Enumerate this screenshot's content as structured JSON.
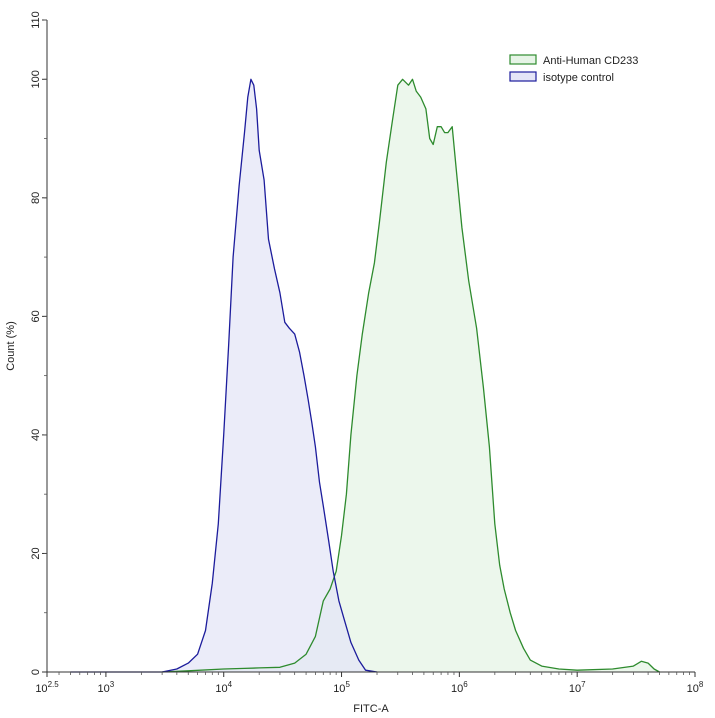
{
  "chart_data": {
    "type": "area",
    "xlabel": "FITC-A",
    "ylabel": "Count  (%)",
    "x_scale": "log",
    "xlim": [
      316.23,
      100000000
    ],
    "ylim": [
      0,
      110
    ],
    "grid": false,
    "legend_position": "top-right",
    "x_ticks": [
      {
        "value": 316.23,
        "base": "10",
        "exp": "2.5"
      },
      {
        "value": 1000,
        "base": "10",
        "exp": "3"
      },
      {
        "value": 10000,
        "base": "10",
        "exp": "4"
      },
      {
        "value": 100000,
        "base": "10",
        "exp": "5"
      },
      {
        "value": 1000000,
        "base": "10",
        "exp": "6"
      },
      {
        "value": 10000000,
        "base": "10",
        "exp": "7"
      },
      {
        "value": 100000000,
        "base": "10",
        "exp": "8"
      }
    ],
    "y_ticks": [
      "0",
      "20",
      "40",
      "60",
      "80",
      "100",
      "110"
    ],
    "series": [
      {
        "name": "Anti-Human CD233",
        "stroke": "#2e8b2e",
        "fill": "#e6f4e6",
        "points": [
          [
            3000,
            0
          ],
          [
            5000,
            0.2
          ],
          [
            10000,
            0.5
          ],
          [
            15000,
            0.6
          ],
          [
            20000,
            0.7
          ],
          [
            30000,
            0.8
          ],
          [
            40000,
            1.5
          ],
          [
            50000,
            3
          ],
          [
            60000,
            6
          ],
          [
            70000,
            12
          ],
          [
            80000,
            14
          ],
          [
            90000,
            17
          ],
          [
            100000,
            23
          ],
          [
            110000,
            30
          ],
          [
            120000,
            40
          ],
          [
            135000,
            50
          ],
          [
            150000,
            57
          ],
          [
            170000,
            64
          ],
          [
            190000,
            69
          ],
          [
            210000,
            76
          ],
          [
            240000,
            86
          ],
          [
            270000,
            93
          ],
          [
            300000,
            99
          ],
          [
            330000,
            100
          ],
          [
            370000,
            99
          ],
          [
            400000,
            100
          ],
          [
            430000,
            98
          ],
          [
            470000,
            97
          ],
          [
            520000,
            95
          ],
          [
            560000,
            90
          ],
          [
            600000,
            89
          ],
          [
            650000,
            92
          ],
          [
            700000,
            92
          ],
          [
            750000,
            91
          ],
          [
            800000,
            91
          ],
          [
            870000,
            92
          ],
          [
            950000,
            84
          ],
          [
            1050000,
            75
          ],
          [
            1200000,
            66
          ],
          [
            1400000,
            58
          ],
          [
            1600000,
            48
          ],
          [
            1800000,
            38
          ],
          [
            2000000,
            25
          ],
          [
            2200000,
            18
          ],
          [
            2400000,
            14
          ],
          [
            2700000,
            10
          ],
          [
            3000000,
            7
          ],
          [
            3500000,
            4
          ],
          [
            4000000,
            2
          ],
          [
            5000000,
            1
          ],
          [
            7000000,
            0.5
          ],
          [
            10000000,
            0.3
          ],
          [
            20000000,
            0.5
          ],
          [
            30000000,
            1
          ],
          [
            35000000,
            1.8
          ],
          [
            40000000,
            1.5
          ],
          [
            45000000,
            0.5
          ],
          [
            50000000,
            0
          ]
        ]
      },
      {
        "name": "isotype control",
        "stroke": "#1c1c9c",
        "fill": "#e4e5f7",
        "points": [
          [
            500,
            0
          ],
          [
            1000,
            0
          ],
          [
            3000,
            0
          ],
          [
            4000,
            0.5
          ],
          [
            5000,
            1.5
          ],
          [
            6000,
            3
          ],
          [
            7000,
            7
          ],
          [
            8000,
            15
          ],
          [
            9000,
            25
          ],
          [
            10000,
            40
          ],
          [
            11000,
            55
          ],
          [
            12000,
            70
          ],
          [
            13500,
            82
          ],
          [
            15000,
            91
          ],
          [
            16000,
            97
          ],
          [
            17000,
            100
          ],
          [
            18000,
            99
          ],
          [
            19000,
            95
          ],
          [
            20000,
            88
          ],
          [
            22000,
            83
          ],
          [
            24000,
            73
          ],
          [
            27000,
            68
          ],
          [
            30000,
            64
          ],
          [
            33000,
            59
          ],
          [
            36000,
            58
          ],
          [
            40000,
            57
          ],
          [
            44000,
            54
          ],
          [
            48000,
            50
          ],
          [
            52000,
            46
          ],
          [
            56000,
            42
          ],
          [
            60000,
            38
          ],
          [
            65000,
            32
          ],
          [
            70000,
            28
          ],
          [
            78000,
            22
          ],
          [
            85000,
            17
          ],
          [
            95000,
            12
          ],
          [
            105000,
            9
          ],
          [
            120000,
            5
          ],
          [
            140000,
            2
          ],
          [
            160000,
            0.3
          ],
          [
            200000,
            0
          ]
        ]
      }
    ]
  }
}
